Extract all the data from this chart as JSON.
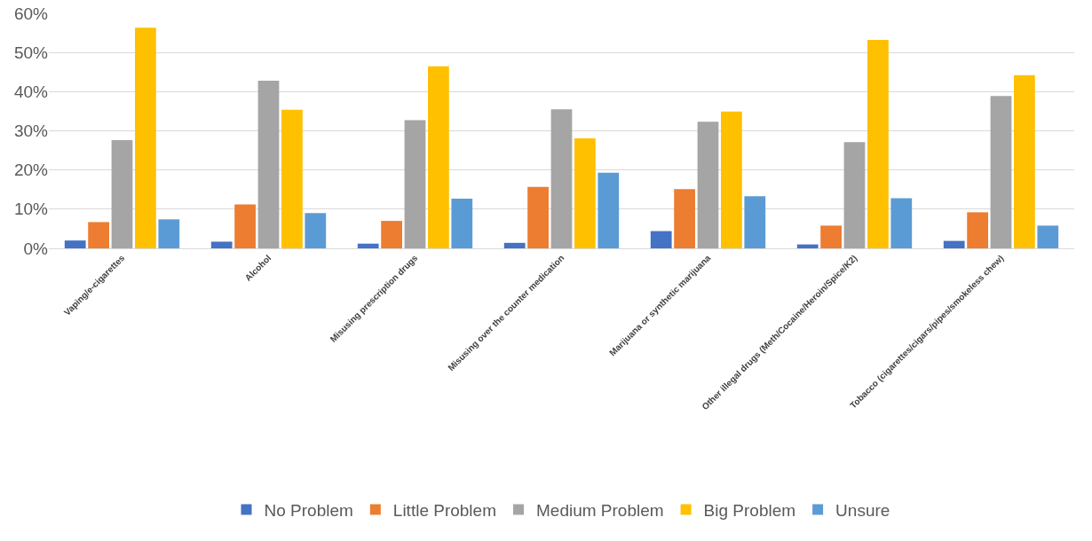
{
  "chart_data": {
    "type": "bar",
    "categories": [
      "Vaping/e-cigarettes",
      "Alcohol",
      "Misusing prescription drugs",
      "Misusing over the counter medication",
      "Marijuana or synthetic marijuana",
      "Other illegal drugs (Meth/Cocaine/Heroin/Spice/K2)",
      "Tobacco (cigarettes/cigars/pipes/smokeless chew)"
    ],
    "series": [
      {
        "name": "No Problem",
        "color": "#4472c4",
        "values": [
          2.0,
          1.7,
          1.2,
          1.4,
          4.4,
          1.0,
          1.9
        ]
      },
      {
        "name": "Little Problem",
        "color": "#ed7d31",
        "values": [
          6.7,
          11.2,
          7.0,
          15.7,
          15.1,
          5.8,
          9.2
        ]
      },
      {
        "name": "Medium Problem",
        "color": "#a5a5a5",
        "values": [
          27.6,
          42.8,
          32.7,
          35.5,
          32.3,
          27.1,
          38.9
        ]
      },
      {
        "name": "Big Problem",
        "color": "#ffc000",
        "values": [
          56.3,
          35.4,
          46.5,
          28.1,
          34.9,
          53.2,
          44.2
        ]
      },
      {
        "name": "Unsure",
        "color": "#5b9bd5",
        "values": [
          7.4,
          9.0,
          12.7,
          19.3,
          13.3,
          12.8,
          5.8
        ]
      }
    ],
    "ylim": [
      0,
      60
    ],
    "yticks": [
      {
        "value": 0,
        "label": "0%"
      },
      {
        "value": 10,
        "label": "10%"
      },
      {
        "value": 20,
        "label": "20%"
      },
      {
        "value": 30,
        "label": "30%"
      },
      {
        "value": 40,
        "label": "40%"
      },
      {
        "value": 50,
        "label": "50%"
      },
      {
        "value": 60,
        "label": "60%"
      }
    ],
    "grid": "y",
    "legend": "bottom"
  }
}
